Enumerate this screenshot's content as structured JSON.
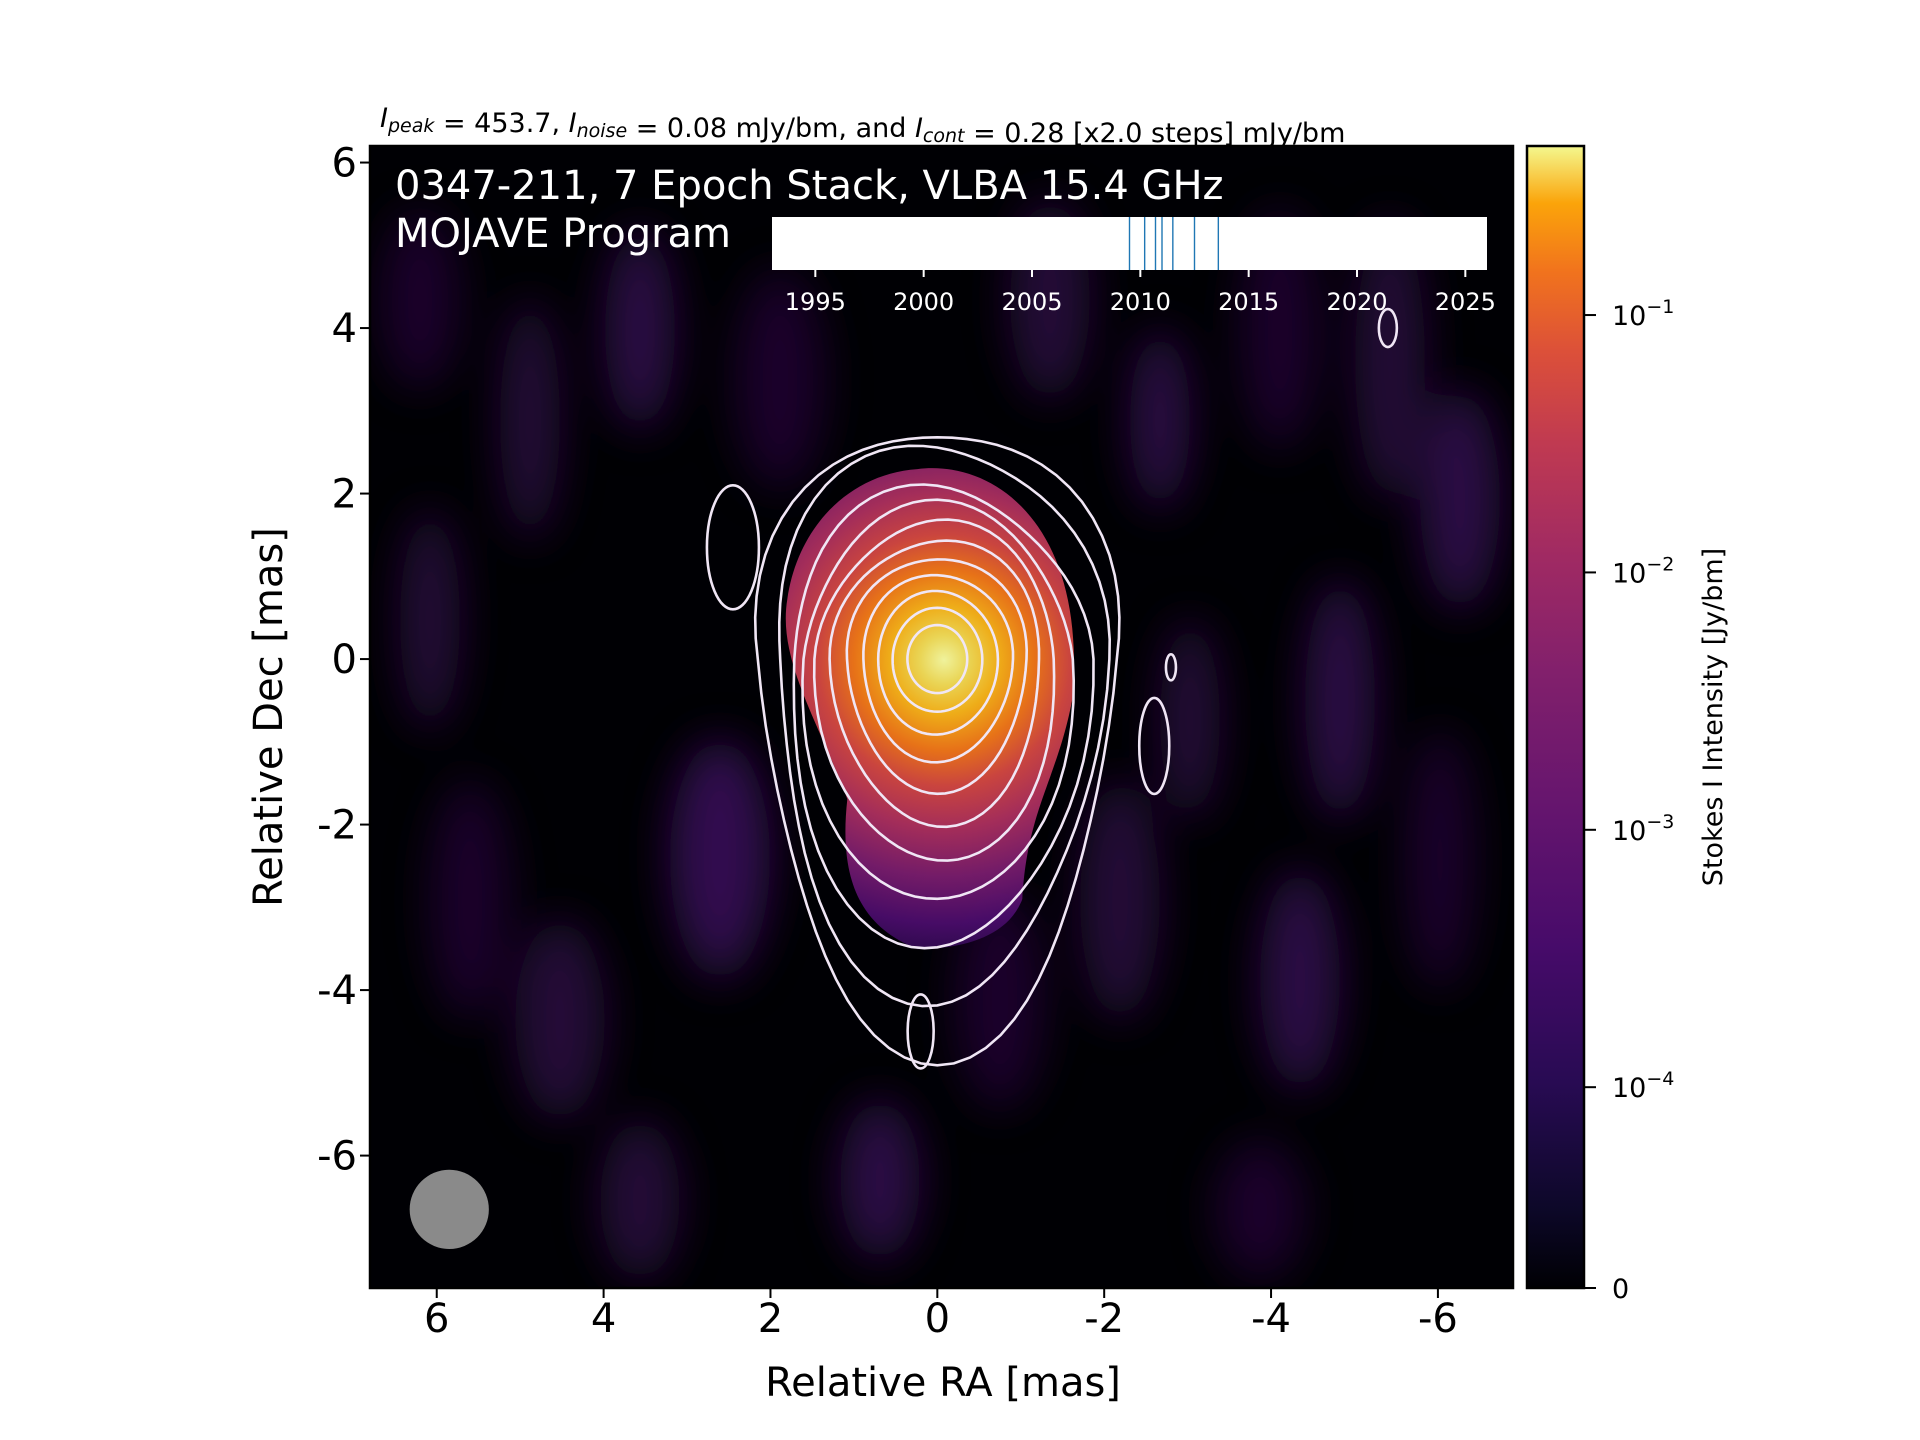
{
  "header": {
    "title_parts": [
      {
        "t": "I",
        "style": "italic"
      },
      {
        "t": "peak",
        "style": "sub"
      },
      {
        "t": " = 453.7, "
      },
      {
        "t": "I",
        "style": "italic"
      },
      {
        "t": "noise",
        "style": "sub"
      },
      {
        "t": " = 0.08 mJy/bm, and "
      },
      {
        "t": "I",
        "style": "italic"
      },
      {
        "t": "cont",
        "style": "sub"
      },
      {
        "t": " = 0.28 [x2.0 steps] mJy/bm"
      }
    ]
  },
  "chart_data": {
    "type": "heatmap",
    "annotation": {
      "line1": "0347-211, 7 Epoch Stack, VLBA 15.4 GHz",
      "line2": "MOJAVE Program"
    },
    "xlabel": "Relative RA [mas]",
    "ylabel": "Relative Dec [mas]",
    "xlim": [
      6.8,
      -6.9
    ],
    "ylim": [
      -7.6,
      6.2
    ],
    "xticks": [
      6,
      4,
      2,
      0,
      -2,
      -4,
      -6
    ],
    "xtick_labels": [
      "6",
      "4",
      "2",
      "0",
      "-2",
      "-4",
      "-6"
    ],
    "yticks": [
      6,
      4,
      2,
      0,
      -2,
      -4,
      -6
    ],
    "ytick_labels": [
      "6",
      "4",
      "2",
      "0",
      "-2",
      "-4",
      "-6"
    ],
    "colormap": "inferno",
    "colorbar": {
      "label": "Stokes I Intensity [Jy/bm]",
      "scale": "log",
      "ticks": [
        {
          "value": 0.1,
          "base": "10",
          "exp": "−1"
        },
        {
          "value": 0.01,
          "base": "10",
          "exp": "−2"
        },
        {
          "value": 0.001,
          "base": "10",
          "exp": "−3"
        },
        {
          "value": 0.0001,
          "base": "10",
          "exp": "−4"
        },
        {
          "value": 0,
          "base": "0",
          "exp": ""
        }
      ]
    },
    "contour_levels_mJy": [
      0.28,
      0.56,
      1.12,
      2.24,
      4.48,
      8.96,
      17.92,
      35.84,
      71.68,
      143.36,
      286.72
    ],
    "core": {
      "x": 0.0,
      "y": 0.0
    },
    "beam": {
      "x": 5.85,
      "y": -6.65,
      "diameter_mas": 0.95
    },
    "epoch_timeline": {
      "xlim": [
        1993,
        2026
      ],
      "ticks": [
        "1995",
        "2000",
        "2005",
        "2010",
        "2015",
        "2020",
        "2025"
      ],
      "epochs": [
        2009.5,
        2010.2,
        2010.7,
        2011.0,
        2011.5,
        2012.5,
        2013.6
      ]
    }
  },
  "colors": {
    "background": "#ffffff",
    "plot_bg": "#000004",
    "contour": "#f0e6f5",
    "beam": "#8a8a8a",
    "epoch_line": "#1f77b4"
  }
}
